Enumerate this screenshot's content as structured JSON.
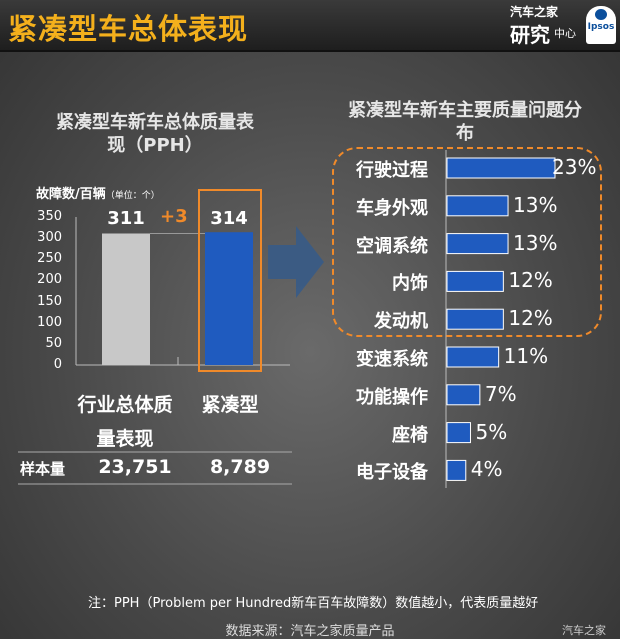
{
  "header": {
    "title": "紧凑型车总体表现",
    "logo_line1": "汽车之家",
    "logo_line2": "研究",
    "logo_line3": "中心",
    "partner_logo": "Ipsos"
  },
  "left": {
    "title_line1": "紧凑型车新车总体质量表",
    "title_line2": "现（PPH）",
    "ylabel": "故障数/百辆",
    "unit": "（单位：个）",
    "yticks": [
      "350",
      "300",
      "250",
      "200",
      "150",
      "100",
      "50",
      "0"
    ],
    "categories_line1": [
      "行业总体质",
      "紧凑型"
    ],
    "categories_line2": [
      "量表现",
      ""
    ],
    "values_text": [
      "311",
      "314"
    ],
    "diff": "+3",
    "sample_label": "样本量",
    "sample_values": [
      "23,751",
      "8,789"
    ]
  },
  "right": {
    "title_line1": "紧凑型车新车主要质量问题分",
    "title_line2": "布",
    "categories": [
      "行驶过程",
      "车身外观",
      "空调系统",
      "内饰",
      "发动机",
      "变速系统",
      "功能操作",
      "座椅",
      "电子设备"
    ],
    "value_labels": [
      "23%",
      "13%",
      "13%",
      "12%",
      "12%",
      "11%",
      "7%",
      "5%",
      "4%"
    ]
  },
  "footer": {
    "note": "注：PPH（Problem per Hundred新车百车故障数）数值越小，代表质量越好",
    "source": "数据来源：汽车之家质量产品",
    "watermark": "汽车之家"
  },
  "colors": {
    "title": "#f4b01c",
    "accent_orange": "#f08a2a",
    "bar_blue": "#1f5bbf",
    "bar_gray": "#c8c8c8"
  },
  "chart_data": [
    {
      "type": "bar",
      "title": "紧凑型车新车总体质量表现（PPH）",
      "ylabel": "故障数/百辆（单位：个）",
      "categories": [
        "行业总体质量表现",
        "紧凑型"
      ],
      "values": [
        311,
        314
      ],
      "ylim": [
        0,
        350
      ],
      "grid": false
    },
    {
      "type": "bar",
      "orientation": "horizontal",
      "title": "紧凑型车新车主要质量问题分布",
      "categories": [
        "行驶过程",
        "车身外观",
        "空调系统",
        "内饰",
        "发动机",
        "变速系统",
        "功能操作",
        "座椅",
        "电子设备"
      ],
      "values": [
        23,
        13,
        13,
        12,
        12,
        11,
        7,
        5,
        4
      ],
      "unit": "%"
    }
  ]
}
